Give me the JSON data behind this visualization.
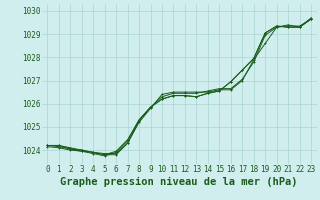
{
  "title": "Graphe pression niveau de la mer (hPa)",
  "ylim": [
    1023.4,
    1030.3
  ],
  "xlim": [
    -0.5,
    23.5
  ],
  "yticks": [
    1024,
    1025,
    1026,
    1027,
    1028,
    1029,
    1030
  ],
  "background_color": "#d1eeee",
  "grid_color": "#aad4d4",
  "line_color": "#1a5c1a",
  "marker": "+",
  "lines": [
    [
      1024.2,
      1024.2,
      1024.1,
      1024.0,
      1023.9,
      1023.85,
      1023.85,
      1024.3,
      1025.2,
      1025.8,
      1026.4,
      1026.5,
      1026.5,
      1026.5,
      1026.5,
      1026.6,
      1026.6,
      1027.0,
      1027.9,
      1028.6,
      1029.3,
      1029.4,
      1029.3,
      1029.7
    ],
    [
      1024.2,
      1024.2,
      1024.05,
      1024.0,
      1023.9,
      1023.8,
      1023.8,
      1024.3,
      1025.25,
      1025.85,
      1026.3,
      1026.45,
      1026.45,
      1026.45,
      1026.55,
      1026.65,
      1026.65,
      1027.05,
      1027.8,
      1028.95,
      1029.3,
      1029.35,
      1029.35,
      1029.65
    ],
    [
      1024.2,
      1024.15,
      1024.05,
      1023.95,
      1023.9,
      1023.8,
      1023.95,
      1024.45,
      1025.3,
      1025.85,
      1026.2,
      1026.35,
      1026.35,
      1026.3,
      1026.45,
      1026.55,
      1026.95,
      1027.45,
      1027.95,
      1029.05,
      1029.35,
      1029.3,
      1029.3,
      1029.65
    ],
    [
      1024.15,
      1024.1,
      1024.0,
      1023.95,
      1023.85,
      1023.75,
      1023.9,
      1024.4,
      1025.3,
      1025.85,
      1026.2,
      1026.35,
      1026.35,
      1026.3,
      1026.45,
      1026.55,
      1026.95,
      1027.45,
      1027.95,
      1029.05,
      1029.35,
      1029.3,
      1029.3,
      1029.65
    ]
  ],
  "title_fontsize": 7.5,
  "tick_fontsize": 5.5,
  "title_color": "#1a5c1a",
  "tick_color": "#1a5c1a"
}
